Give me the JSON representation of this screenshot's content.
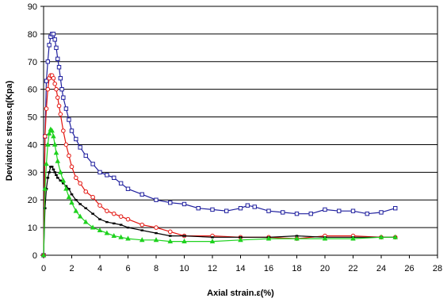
{
  "chart_data": {
    "type": "scatter",
    "title": "",
    "xlabel": "Axial strain.ε(%)",
    "ylabel": "Deviatoric stress.q(Kpa)",
    "xlim": [
      0,
      28
    ],
    "ylim": [
      0,
      90
    ],
    "xticks": [
      0,
      2,
      4,
      6,
      8,
      10,
      12,
      14,
      16,
      18,
      20,
      22,
      24,
      26,
      28
    ],
    "yticks": [
      0,
      10,
      20,
      30,
      40,
      50,
      60,
      70,
      80,
      90
    ],
    "grid": "horizontal",
    "legend": "none",
    "series": [
      {
        "color": "#1f1f9e",
        "marker": "square",
        "x": [
          0,
          0.1,
          0.2,
          0.3,
          0.4,
          0.5,
          0.6,
          0.7,
          0.8,
          0.9,
          1.0,
          1.1,
          1.2,
          1.3,
          1.4,
          1.6,
          1.8,
          2.0,
          2.3,
          2.6,
          3.0,
          3.5,
          4.0,
          4.5,
          5.0,
          5.5,
          6.0,
          7.0,
          8.0,
          9.0,
          10.0,
          11.0,
          12.0,
          13.0,
          14.0,
          14.5,
          15.0,
          16.0,
          17.0,
          18.0,
          19.0,
          20.0,
          21.0,
          22.0,
          23.0,
          24.0,
          25.0
        ],
        "y": [
          0,
          43,
          63,
          70,
          76,
          79,
          80,
          80,
          78,
          75,
          71,
          68,
          64,
          60,
          57,
          53,
          49,
          45,
          42,
          39,
          36,
          33,
          30,
          29,
          28,
          26,
          24,
          22,
          20,
          19,
          18.5,
          17,
          16.5,
          16,
          17,
          18,
          17.5,
          16,
          15.5,
          15,
          15,
          16.5,
          16,
          16,
          15,
          15.5,
          17
        ]
      },
      {
        "color": "#e3140f",
        "marker": "circle",
        "x": [
          0,
          0.1,
          0.2,
          0.3,
          0.4,
          0.5,
          0.6,
          0.7,
          0.8,
          0.9,
          1.0,
          1.1,
          1.2,
          1.4,
          1.6,
          1.8,
          2.0,
          2.3,
          2.6,
          3.0,
          3.5,
          4.0,
          4.5,
          5.0,
          5.5,
          6.0,
          7.0,
          8.0,
          9.0,
          10.0,
          12.0,
          14.0,
          16.0,
          18.0,
          20.0,
          22.0,
          24.0,
          25.0
        ],
        "y": [
          0,
          43,
          53,
          60,
          64,
          65,
          65,
          64,
          62,
          60,
          57,
          54,
          51,
          45,
          40,
          36,
          32,
          28,
          26,
          23,
          21,
          18,
          16,
          15,
          14,
          13,
          11,
          10,
          8.5,
          7,
          7,
          6.5,
          6.5,
          6,
          7,
          7,
          6.5,
          6.5
        ]
      },
      {
        "color": "#000000",
        "marker": "dash",
        "x": [
          0,
          0.1,
          0.2,
          0.3,
          0.4,
          0.5,
          0.6,
          0.7,
          0.8,
          0.9,
          1.0,
          1.2,
          1.4,
          1.6,
          1.8,
          2.0,
          2.3,
          2.6,
          3.0,
          3.5,
          4.0,
          4.5,
          5.0,
          5.5,
          6.0,
          7.0,
          8.0,
          9.0,
          10.0,
          12.0,
          14.0,
          16.0,
          18.0,
          20.0,
          22.0,
          24.0,
          25.0
        ],
        "y": [
          0,
          17,
          24,
          28,
          30,
          32,
          32,
          31,
          30,
          29,
          28,
          27,
          26,
          25,
          24,
          22,
          20,
          18.5,
          17,
          15,
          13,
          12,
          11.5,
          11,
          10,
          9,
          8,
          7,
          7,
          6.5,
          6.5,
          6.5,
          7,
          6.5,
          6.5,
          6.5,
          6.5
        ]
      },
      {
        "color": "#1fd21f",
        "marker": "triangle",
        "x": [
          0,
          0.1,
          0.2,
          0.3,
          0.4,
          0.5,
          0.6,
          0.7,
          0.8,
          0.9,
          1.0,
          1.2,
          1.4,
          1.6,
          1.8,
          2.0,
          2.3,
          2.6,
          3.0,
          3.5,
          4.0,
          4.5,
          5.0,
          5.5,
          6.0,
          7.0,
          8.0,
          9.0,
          10.0,
          12.0,
          14.0,
          16.0,
          18.0,
          20.0,
          22.0,
          24.0,
          25.0
        ],
        "y": [
          0,
          24,
          33,
          40,
          44,
          45.5,
          45,
          43,
          40,
          37,
          34,
          30,
          27,
          24,
          21,
          19,
          16,
          14,
          12,
          10,
          9,
          8,
          7,
          6.5,
          6,
          5.5,
          5.5,
          5,
          5,
          5,
          5.5,
          6,
          6,
          6,
          6,
          6.5,
          6.5
        ]
      }
    ]
  }
}
